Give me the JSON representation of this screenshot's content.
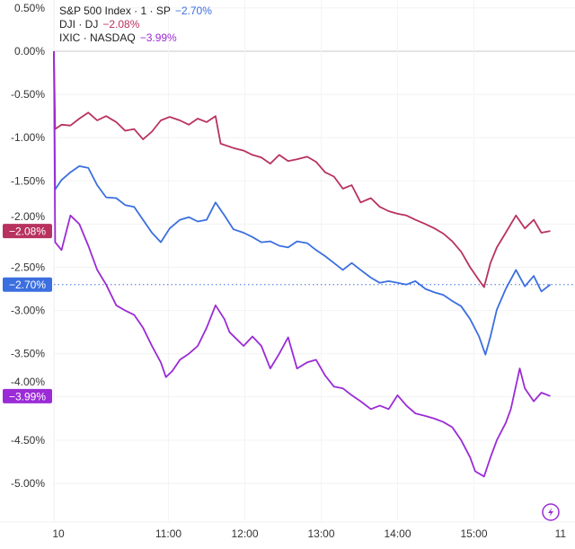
{
  "chart_data": {
    "type": "line",
    "ylim": [
      -5.4,
      0.6
    ],
    "y_ticks": [
      "0.50%",
      "0.00%",
      "-0.50%",
      "-1.00%",
      "-1.50%",
      "-2.00%",
      "-2.50%",
      "-3.00%",
      "-3.50%",
      "-4.00%",
      "-4.50%",
      "-5.00%"
    ],
    "y_tick_values": [
      0.5,
      0,
      -0.5,
      -1,
      -1.5,
      -2,
      -2.5,
      -3,
      -3.5,
      -4,
      -4.5,
      -5
    ],
    "x_ticks": [
      "10",
      "11:00",
      "12:00",
      "13:00",
      "14:00",
      "15:00",
      "11"
    ],
    "x_tick_times": [
      "09:30",
      "11:00",
      "12:00",
      "13:00",
      "14:00",
      "15:00",
      "16:08"
    ],
    "grid": true,
    "legend_position": "top-left",
    "series": [
      {
        "name": "S&P 500 Index · 1 · SP",
        "last_label": "−2.70%",
        "last": -2.7,
        "color": "#3b6fe0",
        "points": [
          [
            "09:30",
            0
          ],
          [
            "09:31",
            -1.6
          ],
          [
            "09:36",
            -1.49
          ],
          [
            "09:43",
            -1.4
          ],
          [
            "09:50",
            -1.33
          ],
          [
            "09:57",
            -1.35
          ],
          [
            "10:04",
            -1.55
          ],
          [
            "10:11",
            -1.69
          ],
          [
            "10:19",
            -1.7
          ],
          [
            "10:26",
            -1.78
          ],
          [
            "10:33",
            -1.8
          ],
          [
            "10:40",
            -1.95
          ],
          [
            "10:47",
            -2.1
          ],
          [
            "10:54",
            -2.21
          ],
          [
            "11:01",
            -2.05
          ],
          [
            "11:09",
            -1.95
          ],
          [
            "11:16",
            -1.92
          ],
          [
            "11:23",
            -1.97
          ],
          [
            "11:30",
            -1.95
          ],
          [
            "11:37",
            -1.75
          ],
          [
            "11:44",
            -1.9
          ],
          [
            "11:51",
            -2.06
          ],
          [
            "11:59",
            -2.1
          ],
          [
            "12:06",
            -2.15
          ],
          [
            "12:13",
            -2.21
          ],
          [
            "12:20",
            -2.2
          ],
          [
            "12:27",
            -2.25
          ],
          [
            "12:34",
            -2.27
          ],
          [
            "12:41",
            -2.2
          ],
          [
            "12:49",
            -2.22
          ],
          [
            "12:56",
            -2.3
          ],
          [
            "13:03",
            -2.37
          ],
          [
            "13:10",
            -2.45
          ],
          [
            "13:17",
            -2.53
          ],
          [
            "13:24",
            -2.45
          ],
          [
            "13:31",
            -2.53
          ],
          [
            "13:39",
            -2.62
          ],
          [
            "13:46",
            -2.68
          ],
          [
            "13:53",
            -2.66
          ],
          [
            "14:00",
            -2.68
          ],
          [
            "14:07",
            -2.7
          ],
          [
            "14:14",
            -2.66
          ],
          [
            "14:22",
            -2.75
          ],
          [
            "14:29",
            -2.79
          ],
          [
            "14:36",
            -2.82
          ],
          [
            "14:43",
            -2.89
          ],
          [
            "14:50",
            -2.95
          ],
          [
            "14:57",
            -3.1
          ],
          [
            "15:04",
            -3.3
          ],
          [
            "15:09",
            -3.51
          ],
          [
            "15:13",
            -3.3
          ],
          [
            "15:18",
            -2.99
          ],
          [
            "15:25",
            -2.75
          ],
          [
            "15:33",
            -2.53
          ],
          [
            "15:40",
            -2.72
          ],
          [
            "15:47",
            -2.6
          ],
          [
            "15:53",
            -2.78
          ],
          [
            "16:00",
            -2.7
          ]
        ]
      },
      {
        "name": "DJI · DJ",
        "last_label": "−2.08%",
        "last": -2.08,
        "color": "#b8325f",
        "points": [
          [
            "09:30",
            0
          ],
          [
            "09:31",
            -0.9
          ],
          [
            "09:36",
            -0.85
          ],
          [
            "09:43",
            -0.86
          ],
          [
            "09:50",
            -0.78
          ],
          [
            "09:57",
            -0.71
          ],
          [
            "10:04",
            -0.8
          ],
          [
            "10:11",
            -0.75
          ],
          [
            "10:19",
            -0.82
          ],
          [
            "10:26",
            -0.92
          ],
          [
            "10:33",
            -0.9
          ],
          [
            "10:40",
            -1.02
          ],
          [
            "10:47",
            -0.93
          ],
          [
            "10:54",
            -0.8
          ],
          [
            "11:01",
            -0.76
          ],
          [
            "11:09",
            -0.8
          ],
          [
            "11:16",
            -0.85
          ],
          [
            "11:23",
            -0.78
          ],
          [
            "11:30",
            -0.82
          ],
          [
            "11:37",
            -0.75
          ],
          [
            "11:41",
            -1.07
          ],
          [
            "11:51",
            -1.12
          ],
          [
            "11:59",
            -1.15
          ],
          [
            "12:06",
            -1.2
          ],
          [
            "12:13",
            -1.23
          ],
          [
            "12:20",
            -1.3
          ],
          [
            "12:27",
            -1.2
          ],
          [
            "12:34",
            -1.27
          ],
          [
            "12:41",
            -1.25
          ],
          [
            "12:49",
            -1.22
          ],
          [
            "12:56",
            -1.28
          ],
          [
            "13:03",
            -1.4
          ],
          [
            "13:10",
            -1.45
          ],
          [
            "13:17",
            -1.59
          ],
          [
            "13:24",
            -1.55
          ],
          [
            "13:31",
            -1.75
          ],
          [
            "13:39",
            -1.7
          ],
          [
            "13:46",
            -1.8
          ],
          [
            "13:53",
            -1.85
          ],
          [
            "14:00",
            -1.88
          ],
          [
            "14:07",
            -1.9
          ],
          [
            "14:14",
            -1.95
          ],
          [
            "14:22",
            -2.0
          ],
          [
            "14:29",
            -2.05
          ],
          [
            "14:36",
            -2.11
          ],
          [
            "14:43",
            -2.2
          ],
          [
            "14:50",
            -2.32
          ],
          [
            "14:57",
            -2.5
          ],
          [
            "15:04",
            -2.65
          ],
          [
            "15:08",
            -2.73
          ],
          [
            "15:13",
            -2.45
          ],
          [
            "15:18",
            -2.27
          ],
          [
            "15:25",
            -2.1
          ],
          [
            "15:33",
            -1.9
          ],
          [
            "15:40",
            -2.05
          ],
          [
            "15:47",
            -1.95
          ],
          [
            "15:53",
            -2.1
          ],
          [
            "16:00",
            -2.08
          ]
        ]
      },
      {
        "name": "IXIC · NASDAQ",
        "last_label": "−3.99%",
        "last": -3.99,
        "color": "#9b2bd6",
        "points": [
          [
            "09:30",
            0
          ],
          [
            "09:31",
            -2.21
          ],
          [
            "09:36",
            -2.3
          ],
          [
            "09:43",
            -1.9
          ],
          [
            "09:50",
            -2.0
          ],
          [
            "09:57",
            -2.25
          ],
          [
            "10:04",
            -2.53
          ],
          [
            "10:11",
            -2.7
          ],
          [
            "10:19",
            -2.94
          ],
          [
            "10:26",
            -3.0
          ],
          [
            "10:33",
            -3.05
          ],
          [
            "10:40",
            -3.2
          ],
          [
            "10:47",
            -3.41
          ],
          [
            "10:54",
            -3.6
          ],
          [
            "10:58",
            -3.77
          ],
          [
            "11:03",
            -3.7
          ],
          [
            "11:09",
            -3.57
          ],
          [
            "11:16",
            -3.5
          ],
          [
            "11:23",
            -3.41
          ],
          [
            "11:30",
            -3.2
          ],
          [
            "11:37",
            -2.94
          ],
          [
            "11:44",
            -3.1
          ],
          [
            "11:48",
            -3.25
          ],
          [
            "11:59",
            -3.41
          ],
          [
            "12:06",
            -3.3
          ],
          [
            "12:13",
            -3.41
          ],
          [
            "12:20",
            -3.67
          ],
          [
            "12:27",
            -3.5
          ],
          [
            "12:34",
            -3.31
          ],
          [
            "12:41",
            -3.67
          ],
          [
            "12:49",
            -3.6
          ],
          [
            "12:56",
            -3.57
          ],
          [
            "13:03",
            -3.75
          ],
          [
            "13:10",
            -3.88
          ],
          [
            "13:17",
            -3.9
          ],
          [
            "13:24",
            -3.98
          ],
          [
            "13:31",
            -4.05
          ],
          [
            "13:39",
            -4.14
          ],
          [
            "13:46",
            -4.1
          ],
          [
            "13:53",
            -4.14
          ],
          [
            "14:00",
            -3.98
          ],
          [
            "14:07",
            -4.1
          ],
          [
            "14:14",
            -4.19
          ],
          [
            "14:22",
            -4.22
          ],
          [
            "14:29",
            -4.25
          ],
          [
            "14:36",
            -4.29
          ],
          [
            "14:43",
            -4.35
          ],
          [
            "14:50",
            -4.5
          ],
          [
            "14:57",
            -4.7
          ],
          [
            "15:01",
            -4.86
          ],
          [
            "15:08",
            -4.92
          ],
          [
            "15:13",
            -4.7
          ],
          [
            "15:18",
            -4.5
          ],
          [
            "15:25",
            -4.3
          ],
          [
            "15:29",
            -4.14
          ],
          [
            "15:36",
            -3.67
          ],
          [
            "15:40",
            -3.9
          ],
          [
            "15:47",
            -4.05
          ],
          [
            "15:53",
            -3.95
          ],
          [
            "16:00",
            -3.99
          ]
        ]
      }
    ]
  },
  "dashed_line_series": "S&P 500 Index · 1 · SP",
  "icons": {
    "bottom_right": "lightning-bolt-icon"
  }
}
